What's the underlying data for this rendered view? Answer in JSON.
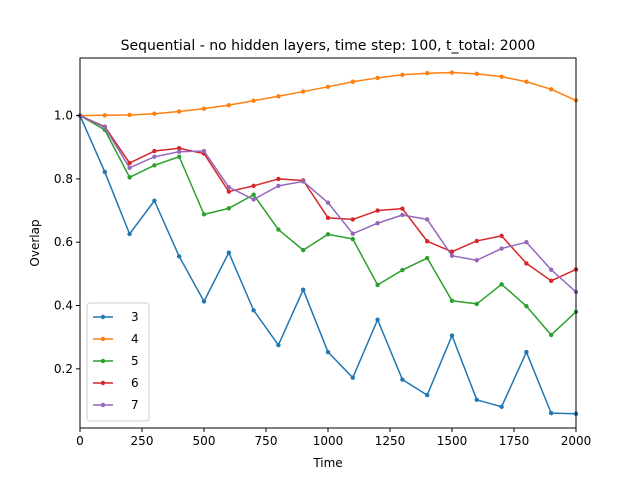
{
  "chart_data": {
    "type": "line",
    "title": "Sequential - no hidden layers, time step: 100, t_total: 2000",
    "xlabel": "Time",
    "ylabel": "Overlap",
    "xlim": [
      0,
      2000
    ],
    "ylim": [
      0.013,
      1.182
    ],
    "x": [
      0,
      100,
      200,
      300,
      400,
      500,
      600,
      700,
      800,
      900,
      1000,
      1100,
      1200,
      1300,
      1400,
      1500,
      1600,
      1700,
      1800,
      1900,
      2000
    ],
    "xticks": [
      0,
      250,
      500,
      750,
      1000,
      1250,
      1500,
      1750,
      2000
    ],
    "xtick_labels": [
      "0",
      "250",
      "500",
      "750",
      "1000",
      "1250",
      "1500",
      "1750",
      "2000"
    ],
    "yticks": [
      0.2,
      0.4,
      0.6,
      0.8,
      1.0
    ],
    "ytick_labels": [
      "0.2",
      "0.4",
      "0.6",
      "0.8",
      "1.0"
    ],
    "grid": false,
    "legend_position": "lower-left",
    "series": [
      {
        "name": "3",
        "color": "#1f77b4",
        "values": [
          1.0,
          0.822,
          0.626,
          0.731,
          0.555,
          0.413,
          0.567,
          0.385,
          0.275,
          0.45,
          0.253,
          0.172,
          0.355,
          0.166,
          0.117,
          0.305,
          0.102,
          0.08,
          0.253,
          0.06,
          0.058
        ]
      },
      {
        "name": "4",
        "color": "#ff7f0e",
        "values": [
          1.0,
          1.001,
          1.002,
          1.006,
          1.013,
          1.022,
          1.033,
          1.047,
          1.061,
          1.076,
          1.091,
          1.107,
          1.119,
          1.129,
          1.134,
          1.136,
          1.132,
          1.123,
          1.107,
          1.083,
          1.048
        ]
      },
      {
        "name": "5",
        "color": "#2ca02c",
        "values": [
          1.0,
          0.955,
          0.805,
          0.843,
          0.87,
          0.688,
          0.707,
          0.75,
          0.64,
          0.575,
          0.625,
          0.61,
          0.465,
          0.512,
          0.55,
          0.415,
          0.405,
          0.467,
          0.398,
          0.307,
          0.38
        ]
      },
      {
        "name": "6",
        "color": "#d62728",
        "values": [
          1.0,
          0.965,
          0.85,
          0.888,
          0.897,
          0.88,
          0.76,
          0.778,
          0.8,
          0.795,
          0.677,
          0.672,
          0.7,
          0.706,
          0.603,
          0.57,
          0.604,
          0.62,
          0.533,
          0.478,
          0.514
        ]
      },
      {
        "name": "7",
        "color": "#9467bd",
        "values": [
          1.0,
          0.963,
          0.835,
          0.87,
          0.886,
          0.888,
          0.774,
          0.735,
          0.778,
          0.792,
          0.725,
          0.627,
          0.66,
          0.686,
          0.672,
          0.557,
          0.543,
          0.58,
          0.6,
          0.513,
          0.443
        ]
      }
    ]
  }
}
